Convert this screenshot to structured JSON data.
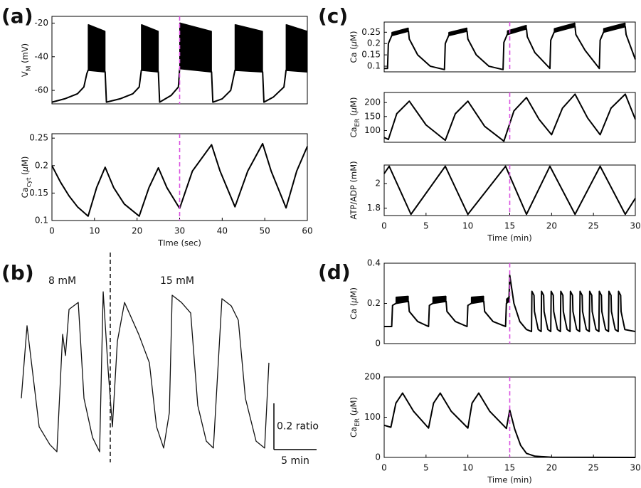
{
  "chart_data": [
    {
      "type": "line",
      "panel": "(a)",
      "ylabel": [
        {
          "text": "V"
        },
        {
          "text": "M",
          "sub": true
        },
        {
          "text": " (mV)"
        }
      ],
      "x": [
        0,
        3,
        6,
        7.5,
        8.2,
        8.5,
        12.5,
        12.8,
        16,
        19,
        20.5,
        21,
        25,
        25.3,
        28,
        29.7,
        30,
        37.5,
        37.8,
        40,
        42,
        43,
        49.5,
        49.8,
        52,
        54.5,
        55,
        60
      ],
      "series": [
        {
          "color": "#000000",
          "values": [
            -67,
            -65,
            -62,
            -58,
            -50,
            -48,
            -49,
            -67,
            -65,
            -62,
            -58,
            -48,
            -49,
            -67,
            -63,
            -58,
            -47,
            -49,
            -67,
            -65,
            -60,
            -48,
            -49,
            -67,
            -64,
            -58,
            -48,
            -49
          ]
        },
        {
          "color": "#000000",
          "x": [
            8.5,
            12.5,
            16,
            21,
            25,
            27,
            30,
            37.5,
            40,
            43,
            49.5,
            52,
            55,
            60
          ],
          "values": [
            -21,
            -25,
            null,
            -21,
            -25,
            null,
            -20,
            -25,
            null,
            -21,
            -25,
            null,
            -21,
            -25
          ]
        }
      ],
      "band": true,
      "xlim": [
        0,
        60
      ],
      "ylim": [
        -68,
        -16
      ],
      "yticks": [
        -60,
        -40,
        -20
      ],
      "vline": 30,
      "vline_color": "#d94fe0"
    },
    {
      "type": "line",
      "ylabel": [
        {
          "text": "Ca"
        },
        {
          "text": "cyt",
          "sub": true
        },
        {
          "text": " ("
        },
        {
          "text": "μ",
          "italic": true
        },
        {
          "text": "M)"
        }
      ],
      "xlabel": "TIme (sec)",
      "x": [
        0,
        2,
        4,
        6,
        8.5,
        10.5,
        12.5,
        14.5,
        17,
        20.5,
        22.8,
        25,
        27,
        30,
        33,
        37.5,
        39.5,
        43,
        46,
        49.5,
        51.5,
        55,
        57.5,
        60
      ],
      "series": [
        {
          "color": "#000000",
          "values": [
            0.2,
            0.17,
            0.145,
            0.125,
            0.108,
            0.16,
            0.197,
            0.16,
            0.13,
            0.108,
            0.16,
            0.196,
            0.16,
            0.122,
            0.19,
            0.238,
            0.19,
            0.125,
            0.19,
            0.24,
            0.19,
            0.123,
            0.19,
            0.235
          ]
        }
      ],
      "xlim": [
        0,
        60
      ],
      "xticks": [
        0,
        10,
        20,
        30,
        40,
        50,
        60
      ],
      "ylim": [
        0.1,
        0.258
      ],
      "yticks": [
        0.1,
        0.15,
        0.2,
        0.25
      ],
      "vline": 30,
      "vline_color": "#d94fe0"
    },
    {
      "type": "line",
      "panel": "(b)",
      "frame": false,
      "annotations": [
        "8 mM",
        "15 mM"
      ],
      "x": [
        0.83,
        1.5,
        2.92,
        4.17,
        5.0,
        5.67,
        6.0,
        6.42,
        7.5,
        8.17,
        9.17,
        10.0,
        10.42,
        11.0,
        11.5,
        12.08,
        12.92,
        14.58,
        15.83,
        16.67,
        17.5,
        18.17,
        18.5,
        19.58,
        20.67,
        21.5,
        22.5,
        23.33,
        24.33,
        25.42,
        26.25,
        27.08,
        28.33,
        29.33,
        29.83
      ],
      "series": [
        {
          "color": "#111111",
          "values": [
            0.277,
            0.591,
            0.154,
            0.077,
            0.046,
            0.554,
            0.462,
            0.662,
            0.692,
            0.277,
            0.108,
            0.046,
            0.738,
            0.4,
            0.154,
            0.523,
            0.692,
            0.554,
            0.431,
            0.154,
            0.062,
            0.215,
            0.723,
            0.692,
            0.646,
            0.246,
            0.092,
            0.062,
            0.708,
            0.677,
            0.615,
            0.277,
            0.092,
            0.062,
            0.431
          ]
        }
      ],
      "xlim": [
        0,
        30
      ],
      "ylim": [
        0,
        0.8
      ],
      "vline": 11.25,
      "vline_color": "#222222",
      "scalebar": {
        "x": 5,
        "x_label": "5 min",
        "y": 0.2,
        "y_label": "0.2 ratio"
      }
    },
    {
      "type": "line",
      "panel": "(c)",
      "ylabel": [
        {
          "text": "Ca ("
        },
        {
          "text": "μ",
          "italic": true
        },
        {
          "text": "M)"
        }
      ],
      "x": [
        0,
        0.4,
        0.5,
        0.9,
        2.9,
        3.0,
        4,
        5.5,
        7.2,
        7.3,
        7.7,
        9.9,
        10.0,
        11,
        12.5,
        14.2,
        14.3,
        14.7,
        17.0,
        17.1,
        18,
        19.8,
        19.9,
        20.3,
        22.8,
        22.9,
        24,
        25.7,
        25.8,
        26.2,
        28.8,
        28.9,
        30
      ],
      "series": [
        {
          "color": "#000000",
          "values": [
            0.09,
            0.09,
            0.2,
            0.235,
            0.255,
            0.22,
            0.15,
            0.1,
            0.085,
            0.2,
            0.235,
            0.255,
            0.22,
            0.15,
            0.1,
            0.085,
            0.205,
            0.24,
            0.265,
            0.23,
            0.16,
            0.09,
            0.215,
            0.25,
            0.275,
            0.24,
            0.17,
            0.09,
            0.215,
            0.25,
            0.275,
            0.24,
            0.13
          ]
        },
        {
          "color": "#000000",
          "x": [
            0.9,
            2.9,
            5,
            7.7,
            9.9,
            12,
            14.7,
            17,
            18.5,
            20.3,
            22.8,
            24,
            26.2,
            28.8
          ],
          "values": [
            0.248,
            0.268,
            null,
            0.248,
            0.268,
            null,
            0.255,
            0.28,
            null,
            0.265,
            0.29,
            null,
            0.265,
            0.29
          ]
        }
      ],
      "band": true,
      "xlim": [
        0,
        30
      ],
      "ylim": [
        0.075,
        0.295
      ],
      "yticks": [
        0.1,
        0.15,
        0.2,
        0.25
      ],
      "vline": 15,
      "vline_color": "#d94fe0"
    },
    {
      "type": "line",
      "ylabel": [
        {
          "text": "Ca"
        },
        {
          "text": "ER",
          "sub": true
        },
        {
          "text": " ("
        },
        {
          "text": "μ",
          "italic": true
        },
        {
          "text": "M)"
        }
      ],
      "x": [
        0,
        0.5,
        1.5,
        3.0,
        5,
        7.3,
        8.5,
        10,
        12,
        14.3,
        15.5,
        17,
        18.5,
        20,
        21.3,
        22.8,
        24.3,
        25.8,
        27.1,
        28.8,
        30
      ],
      "series": [
        {
          "color": "#000000",
          "values": [
            75,
            68,
            160,
            205,
            120,
            65,
            160,
            205,
            115,
            62,
            170,
            218,
            140,
            85,
            180,
            230,
            145,
            85,
            180,
            230,
            140
          ]
        }
      ],
      "xlim": [
        0,
        30
      ],
      "ylim": [
        58,
        236
      ],
      "yticks": [
        100,
        150,
        200
      ],
      "vline": 15,
      "vline_color": "#d94fe0"
    },
    {
      "type": "line",
      "ylabel": [
        {
          "text": "ATP/ADP (mM)"
        }
      ],
      "xlabel": "Time (min)",
      "x": [
        0,
        0.6,
        3.2,
        7.3,
        10,
        14.5,
        17,
        19.8,
        22.8,
        25.8,
        28.8,
        30
      ],
      "series": [
        {
          "color": "#000000",
          "values": [
            2.08,
            2.14,
            1.75,
            2.14,
            1.75,
            2.14,
            1.75,
            2.14,
            1.75,
            2.14,
            1.75,
            1.88
          ]
        }
      ],
      "xlim": [
        0,
        30
      ],
      "xticks": [
        0,
        5,
        10,
        15,
        20,
        25,
        30
      ],
      "ylim": [
        1.74,
        2.15
      ],
      "yticks": [
        1.8,
        2
      ],
      "vline": 15,
      "vline_color": "#d94fe0"
    },
    {
      "type": "line",
      "panel": "(d)",
      "ylabel": [
        {
          "text": "Ca ("
        },
        {
          "text": "μ",
          "italic": true
        },
        {
          "text": "M)"
        }
      ],
      "x": [
        0,
        0.9,
        1.0,
        1.4,
        2.9,
        3.0,
        4,
        5.3,
        5.4,
        5.8,
        7.4,
        7.5,
        8.5,
        9.9,
        10.0,
        10.4,
        11.9,
        12.0,
        13,
        14.5,
        14.6,
        14.9,
        15.0,
        15.5,
        16.2,
        17.0,
        17.6,
        17.65,
        17.9,
        17.95,
        18.4,
        18.75,
        18.8,
        19.05,
        19.1,
        19.55,
        19.9,
        19.95,
        20.2,
        20.25,
        20.7,
        21.05,
        21.1,
        21.35,
        21.4,
        21.85,
        22.2,
        22.25,
        22.5,
        22.55,
        23.0,
        23.35,
        23.4,
        23.65,
        23.7,
        24.15,
        24.5,
        24.55,
        24.8,
        24.85,
        25.3,
        25.65,
        25.7,
        25.95,
        26.0,
        26.45,
        26.8,
        26.85,
        27.1,
        27.15,
        27.6,
        27.95,
        28.0,
        28.25,
        28.3,
        28.75,
        30
      ],
      "series": [
        {
          "color": "#000000",
          "values": [
            0.085,
            0.085,
            0.19,
            0.2,
            0.21,
            0.16,
            0.11,
            0.085,
            0.19,
            0.2,
            0.21,
            0.16,
            0.11,
            0.085,
            0.19,
            0.2,
            0.21,
            0.16,
            0.11,
            0.085,
            0.2,
            0.21,
            0.34,
            0.2,
            0.11,
            0.07,
            0.06,
            0.26,
            0.24,
            0.16,
            0.07,
            0.06,
            0.26,
            0.24,
            0.16,
            0.07,
            0.06,
            0.26,
            0.24,
            0.16,
            0.07,
            0.06,
            0.26,
            0.24,
            0.16,
            0.07,
            0.06,
            0.26,
            0.24,
            0.16,
            0.07,
            0.06,
            0.26,
            0.24,
            0.16,
            0.07,
            0.06,
            0.26,
            0.24,
            0.16,
            0.07,
            0.06,
            0.26,
            0.24,
            0.16,
            0.07,
            0.06,
            0.26,
            0.24,
            0.16,
            0.07,
            0.06,
            0.26,
            0.24,
            0.16,
            0.07,
            0.06
          ]
        },
        {
          "color": "#000000",
          "x": [
            1.4,
            2.9,
            4,
            5.8,
            7.4,
            8.5,
            10.4,
            11.9,
            13,
            14.6,
            14.9
          ],
          "values": [
            0.23,
            0.235,
            null,
            0.23,
            0.235,
            null,
            0.23,
            0.235,
            null,
            0.22,
            0.23
          ]
        }
      ],
      "band": true,
      "xlim": [
        0,
        30
      ],
      "ylim": [
        0,
        0.4
      ],
      "yticks": [
        0,
        0.2,
        0.4
      ],
      "vline": 15,
      "vline_color": "#d94fe0"
    },
    {
      "type": "line",
      "ylabel": [
        {
          "text": "Ca"
        },
        {
          "text": "ER",
          "sub": true
        },
        {
          "text": " ("
        },
        {
          "text": "μ",
          "italic": true
        },
        {
          "text": "M)"
        }
      ],
      "xlabel": "Time (min)",
      "x": [
        0,
        0.8,
        1.4,
        2.2,
        3.5,
        5.3,
        5.9,
        6.7,
        8,
        10,
        10.5,
        11.3,
        12.6,
        14.6,
        15.0,
        15.6,
        16.3,
        17,
        18,
        20,
        30
      ],
      "series": [
        {
          "color": "#000000",
          "values": [
            80,
            75,
            135,
            160,
            115,
            73,
            135,
            160,
            115,
            73,
            135,
            160,
            115,
            72,
            118,
            70,
            30,
            10,
            3,
            0.5,
            0
          ]
        }
      ],
      "xlim": [
        0,
        30
      ],
      "xticks": [
        0,
        5,
        10,
        15,
        20,
        25,
        30
      ],
      "ylim": [
        0,
        200
      ],
      "yticks": [
        0,
        100,
        200
      ],
      "vline": 15,
      "vline_color": "#d94fe0"
    }
  ]
}
